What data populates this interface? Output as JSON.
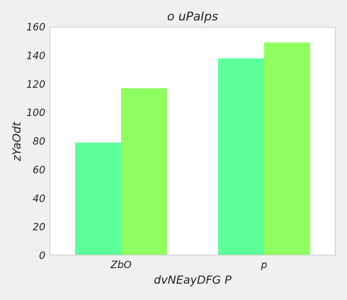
{
  "chart_data": {
    "type": "bar",
    "title": "o uPaIps",
    "xlabel": "dvNEayDFG  P",
    "ylabel": "zYaOdt",
    "categories": [
      "ZbO",
      "p"
    ],
    "series": [
      {
        "color": "#5cff9a",
        "values": [
          79,
          138
        ]
      },
      {
        "color": "#8fff5f",
        "values": [
          117,
          149
        ]
      }
    ],
    "ylim": [
      0,
      160
    ],
    "yticks": [
      0,
      20,
      40,
      60,
      80,
      100,
      120,
      140,
      160
    ],
    "grid": false,
    "legend": "none"
  },
  "colors": {
    "figure_background": "#f0f0f0",
    "plot_background": "#ffffff",
    "axes_border": "#cccccc"
  }
}
